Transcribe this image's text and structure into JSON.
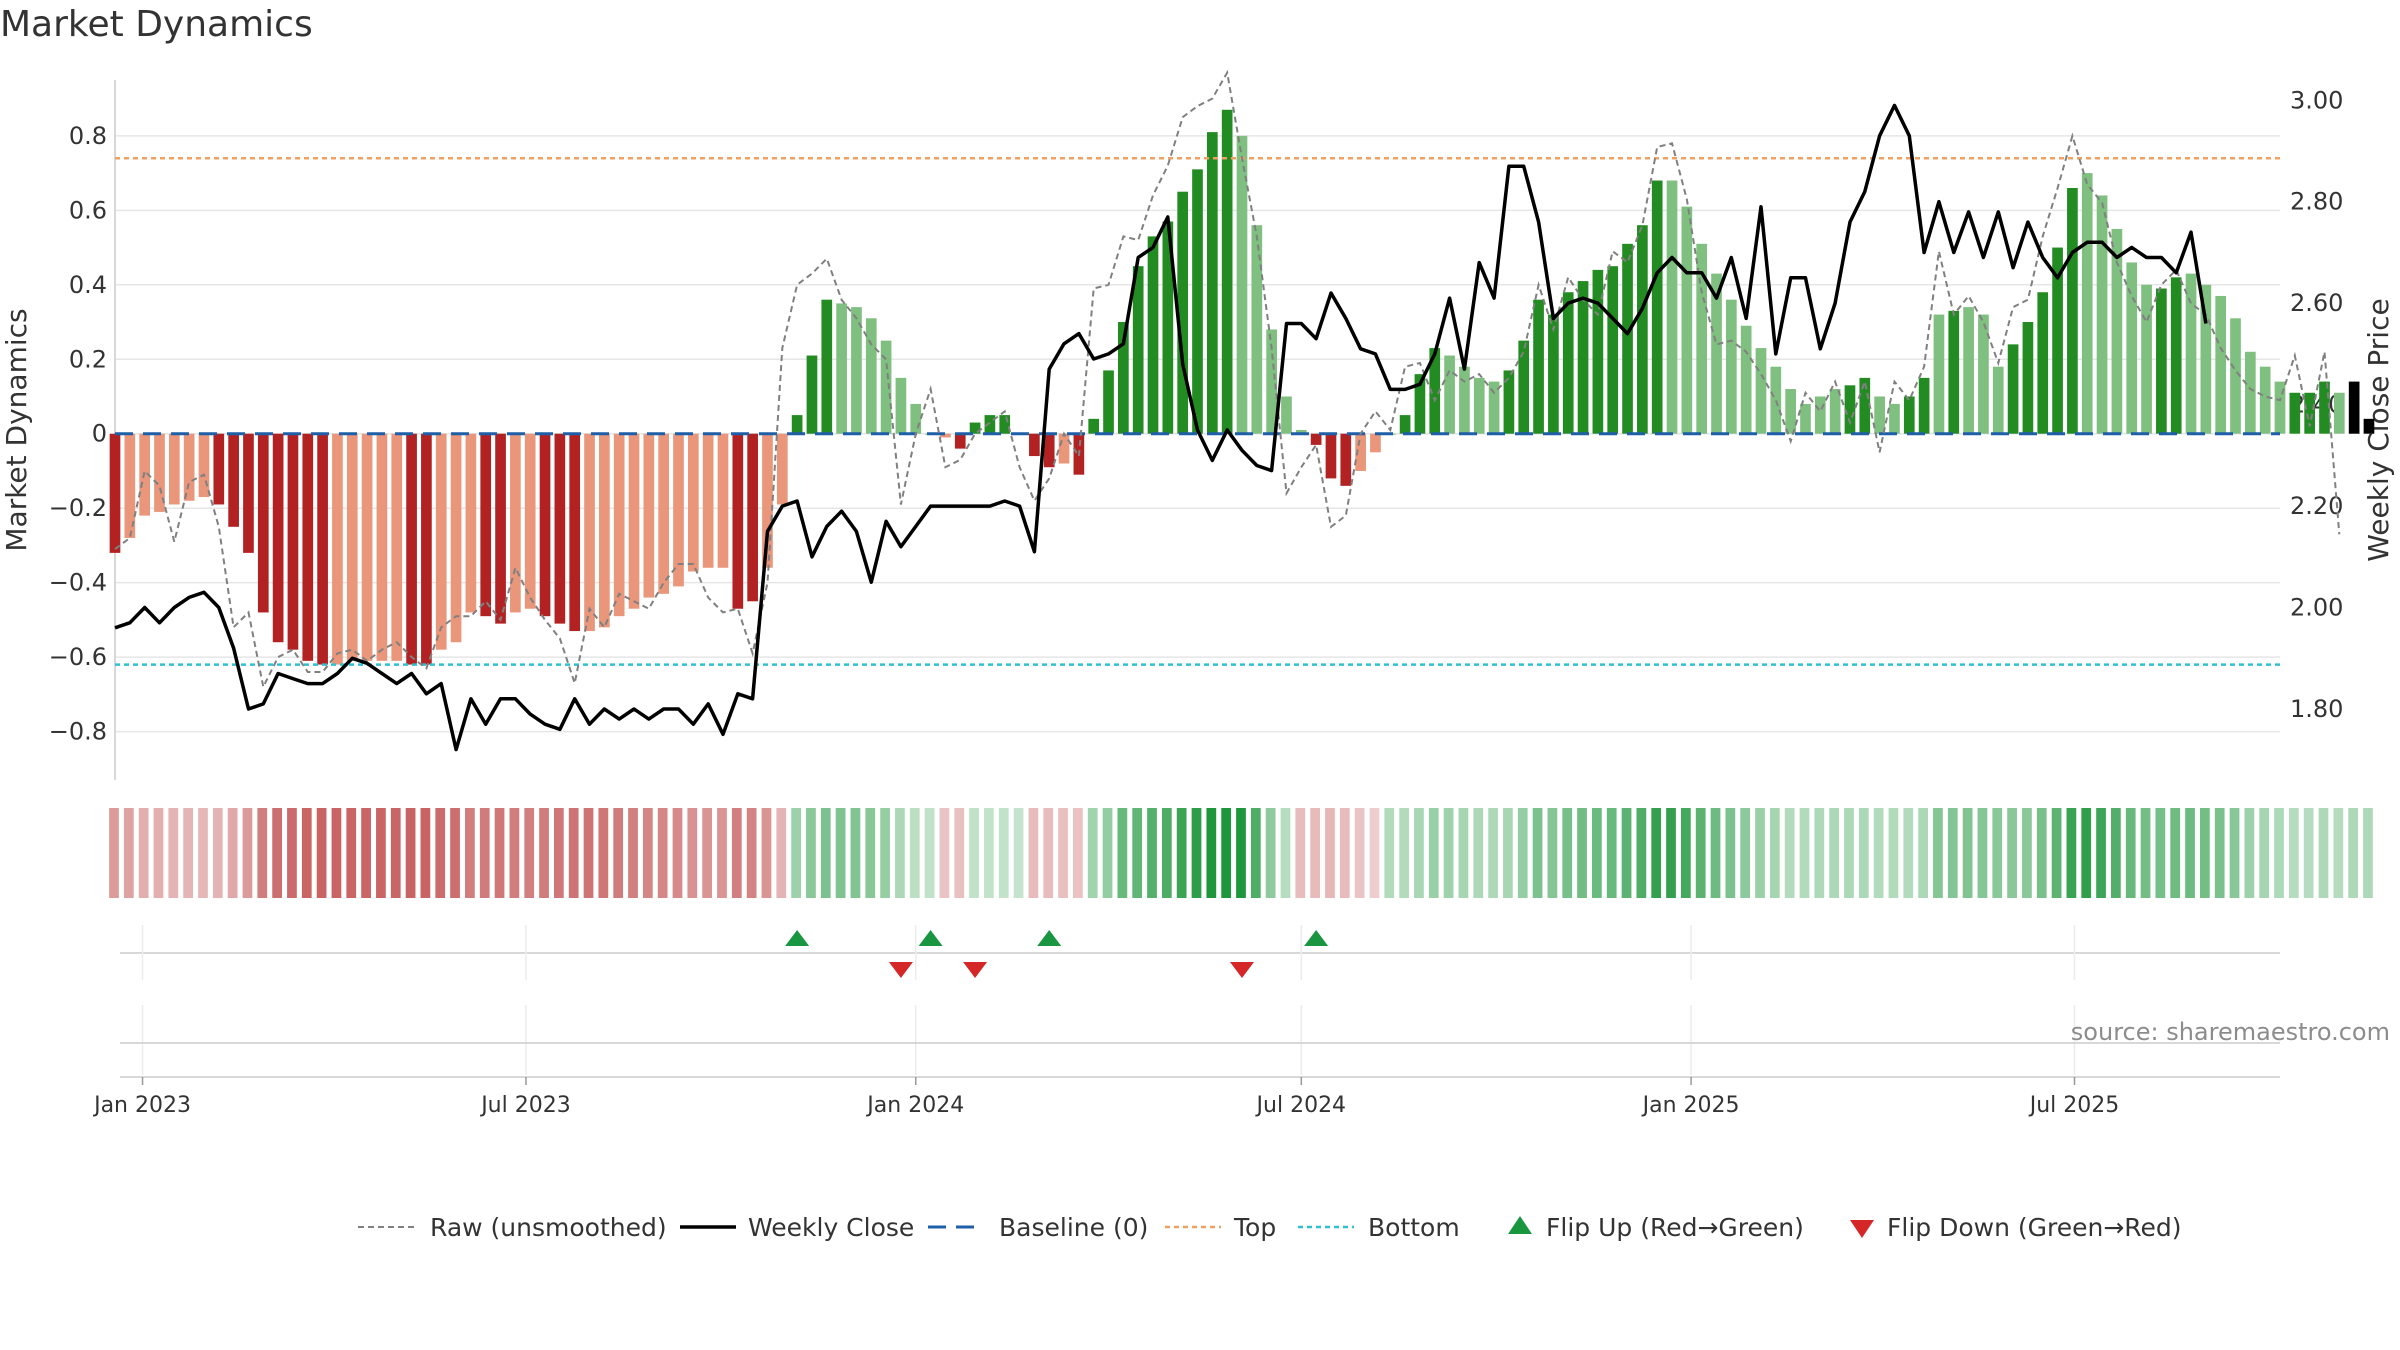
{
  "title": "Market Dynamics",
  "source": "source: sharemaestro.com",
  "chart_data": {
    "type": "bar",
    "left_axis": {
      "label": "Market Dynamics",
      "range": [
        -0.93,
        0.95
      ],
      "ticks": [
        -0.8,
        -0.6,
        -0.4,
        -0.2,
        0,
        0.2,
        0.4,
        0.6,
        0.8
      ],
      "tick_labels": [
        "−0.8",
        "−0.6",
        "−0.4",
        "−0.2",
        "0",
        "0.2",
        "0.4",
        "0.6",
        "0.8"
      ]
    },
    "right_axis": {
      "label": "Weekly Close Price",
      "range": [
        1.66,
        3.04
      ],
      "ticks": [
        1.8,
        2.0,
        2.2,
        2.4,
        2.6,
        2.8,
        3.0
      ],
      "tick_labels": [
        "1.80",
        "2.00",
        "2.20",
        "2.40",
        "2.60",
        "2.80",
        "3.00"
      ]
    },
    "x_axis": {
      "start": "2022-12-19",
      "end": "2025-10-06",
      "ticks": [
        "2023-01-01",
        "2023-07-01",
        "2024-01-01",
        "2024-07-01",
        "2025-01-01",
        "2025-07-01"
      ],
      "tick_labels": [
        "Jan 2023",
        "Jul 2023",
        "Jan 2024",
        "Jul 2024",
        "Jan 2025",
        "Jul 2025"
      ]
    },
    "start_date": "2022-12-19",
    "step_days": 7,
    "thresholds": {
      "top": 0.74,
      "bottom": -0.62,
      "baseline": 0
    },
    "series": [
      {
        "name": "Market Dynamics",
        "values": [
          -0.32,
          -0.28,
          -0.22,
          -0.21,
          -0.19,
          -0.18,
          -0.17,
          -0.19,
          -0.25,
          -0.32,
          -0.48,
          -0.56,
          -0.58,
          -0.61,
          -0.62,
          -0.62,
          -0.61,
          -0.61,
          -0.61,
          -0.61,
          -0.62,
          -0.62,
          -0.58,
          -0.56,
          -0.48,
          -0.49,
          -0.51,
          -0.48,
          -0.47,
          -0.49,
          -0.51,
          -0.53,
          -0.53,
          -0.52,
          -0.49,
          -0.47,
          -0.44,
          -0.43,
          -0.41,
          -0.37,
          -0.36,
          -0.36,
          -0.47,
          -0.45,
          -0.36,
          -0.19,
          0.05,
          0.21,
          0.36,
          0.35,
          0.34,
          0.31,
          0.25,
          0.15,
          0.08,
          0.0,
          -0.01,
          -0.04,
          0.03,
          0.05,
          0.05,
          0.0,
          -0.06,
          -0.09,
          -0.08,
          -0.11,
          0.04,
          0.17,
          0.3,
          0.45,
          0.53,
          0.57,
          0.65,
          0.71,
          0.81,
          0.87,
          0.8,
          0.56,
          0.28,
          0.1,
          0.01,
          -0.03,
          -0.12,
          -0.14,
          -0.1,
          -0.05,
          0.0,
          0.05,
          0.16,
          0.23,
          0.21,
          0.18,
          0.15,
          0.14,
          0.17,
          0.25,
          0.36,
          0.32,
          0.38,
          0.41,
          0.44,
          0.45,
          0.51,
          0.56,
          0.68,
          0.68,
          0.61,
          0.51,
          0.43,
          0.36,
          0.29,
          0.23,
          0.18,
          0.12,
          0.08,
          0.1,
          0.12,
          0.13,
          0.15,
          0.1,
          0.08,
          0.1,
          0.15,
          0.32,
          0.33,
          0.34,
          0.32,
          0.18,
          0.24,
          0.3,
          0.38,
          0.5,
          0.66,
          0.7,
          0.64,
          0.55,
          0.46,
          0.4,
          0.39,
          0.42,
          0.43,
          0.4,
          0.37,
          0.31,
          0.22,
          0.18,
          0.14,
          0.11,
          0.11,
          0.14,
          0.11,
          0.14,
          0.04
        ],
        "colors": [
          "#b22222",
          "#e9967a",
          "#e9967a",
          "#e9967a",
          "#e9967a",
          "#e9967a",
          "#e9967a",
          "#b22222",
          "#b22222",
          "#b22222",
          "#b22222",
          "#b22222",
          "#b22222",
          "#b22222",
          "#b22222",
          "#e9967a",
          "#e9967a",
          "#e9967a",
          "#e9967a",
          "#e9967a",
          "#b22222",
          "#b22222",
          "#e9967a",
          "#e9967a",
          "#e9967a",
          "#b22222",
          "#b22222",
          "#e9967a",
          "#e9967a",
          "#b22222",
          "#b22222",
          "#b22222",
          "#e9967a",
          "#e9967a",
          "#e9967a",
          "#e9967a",
          "#e9967a",
          "#e9967a",
          "#e9967a",
          "#e9967a",
          "#e9967a",
          "#e9967a",
          "#b22222",
          "#b22222",
          "#e9967a",
          "#e9967a",
          "#228b22",
          "#228b22",
          "#228b22",
          "#7fbf7f",
          "#7fbf7f",
          "#7fbf7f",
          "#7fbf7f",
          "#7fbf7f",
          "#7fbf7f",
          "#7fbf7f",
          "#e9967a",
          "#b22222",
          "#228b22",
          "#228b22",
          "#228b22",
          "#228b22",
          "#b22222",
          "#b22222",
          "#e9967a",
          "#b22222",
          "#228b22",
          "#228b22",
          "#228b22",
          "#228b22",
          "#228b22",
          "#228b22",
          "#228b22",
          "#228b22",
          "#228b22",
          "#228b22",
          "#7fbf7f",
          "#7fbf7f",
          "#7fbf7f",
          "#7fbf7f",
          "#7fbf7f",
          "#b22222",
          "#b22222",
          "#b22222",
          "#e9967a",
          "#e9967a",
          "#7fbf7f",
          "#228b22",
          "#228b22",
          "#228b22",
          "#7fbf7f",
          "#7fbf7f",
          "#7fbf7f",
          "#7fbf7f",
          "#228b22",
          "#228b22",
          "#228b22",
          "#228b22",
          "#228b22",
          "#228b22",
          "#228b22",
          "#228b22",
          "#228b22",
          "#228b22",
          "#228b22",
          "#7fbf7f",
          "#7fbf7f",
          "#7fbf7f",
          "#7fbf7f",
          "#7fbf7f",
          "#7fbf7f",
          "#7fbf7f",
          "#7fbf7f",
          "#7fbf7f",
          "#7fbf7f",
          "#7fbf7f",
          "#7fbf7f",
          "#228b22",
          "#228b22",
          "#7fbf7f",
          "#7fbf7f",
          "#228b22",
          "#228b22",
          "#7fbf7f",
          "#228b22",
          "#7fbf7f",
          "#7fbf7f",
          "#7fbf7f",
          "#228b22",
          "#228b22",
          "#228b22",
          "#228b22",
          "#228b22",
          "#7fbf7f",
          "#7fbf7f",
          "#7fbf7f",
          "#7fbf7f",
          "#7fbf7f",
          "#228b22",
          "#228b22",
          "#7fbf7f",
          "#7fbf7f",
          "#7fbf7f",
          "#7fbf7f",
          "#7fbf7f",
          "#7fbf7f",
          "#7fbf7f",
          "#228b22",
          "#228b22",
          "#228b22",
          "#7fbf7f"
        ]
      },
      {
        "name": "Raw (unsmoothed)",
        "values": [
          -0.31,
          -0.28,
          -0.1,
          -0.14,
          -0.29,
          -0.13,
          -0.11,
          -0.25,
          -0.52,
          -0.48,
          -0.68,
          -0.6,
          -0.58,
          -0.64,
          -0.64,
          -0.59,
          -0.58,
          -0.61,
          -0.58,
          -0.56,
          -0.6,
          -0.63,
          -0.52,
          -0.49,
          -0.49,
          -0.45,
          -0.5,
          -0.36,
          -0.44,
          -0.5,
          -0.55,
          -0.67,
          -0.47,
          -0.52,
          -0.43,
          -0.45,
          -0.47,
          -0.4,
          -0.35,
          -0.35,
          -0.44,
          -0.48,
          -0.47,
          -0.59,
          -0.4,
          0.23,
          0.4,
          0.43,
          0.47,
          0.36,
          0.31,
          0.24,
          0.2,
          -0.19,
          0.0,
          0.12,
          -0.09,
          -0.07,
          0.0,
          0.03,
          0.06,
          -0.09,
          -0.18,
          -0.12,
          0.0,
          -0.06,
          0.39,
          0.4,
          0.53,
          0.52,
          0.64,
          0.72,
          0.85,
          0.88,
          0.9,
          0.97,
          0.74,
          0.53,
          0.23,
          -0.16,
          -0.09,
          -0.03,
          -0.25,
          -0.22,
          0.0,
          0.06,
          0.01,
          0.18,
          0.19,
          0.09,
          0.17,
          0.14,
          0.16,
          0.11,
          0.15,
          0.22,
          0.4,
          0.28,
          0.42,
          0.36,
          0.32,
          0.49,
          0.46,
          0.56,
          0.77,
          0.78,
          0.63,
          0.38,
          0.24,
          0.25,
          0.22,
          0.16,
          0.09,
          -0.02,
          0.11,
          0.06,
          0.14,
          0.03,
          0.14,
          -0.05,
          0.14,
          0.09,
          0.18,
          0.49,
          0.32,
          0.37,
          0.3,
          0.19,
          0.34,
          0.36,
          0.53,
          0.66,
          0.8,
          0.67,
          0.62,
          0.46,
          0.37,
          0.3,
          0.4,
          0.44,
          0.35,
          0.32,
          0.23,
          0.17,
          0.12,
          0.1,
          0.09,
          0.21,
          0.02,
          0.22,
          -0.27
        ]
      },
      {
        "name": "Weekly Close",
        "values": [
          1.96,
          1.97,
          2.0,
          1.97,
          2.0,
          2.02,
          2.03,
          2.0,
          1.92,
          1.8,
          1.81,
          1.87,
          1.86,
          1.85,
          1.85,
          1.87,
          1.9,
          1.89,
          1.87,
          1.85,
          1.87,
          1.83,
          1.85,
          1.72,
          1.82,
          1.77,
          1.82,
          1.82,
          1.79,
          1.77,
          1.76,
          1.82,
          1.77,
          1.8,
          1.78,
          1.8,
          1.78,
          1.8,
          1.8,
          1.77,
          1.81,
          1.75,
          1.83,
          1.82,
          2.15,
          2.2,
          2.21,
          2.1,
          2.16,
          2.19,
          2.15,
          2.05,
          2.17,
          2.12,
          2.16,
          2.2,
          2.2,
          2.2,
          2.2,
          2.2,
          2.21,
          2.2,
          2.11,
          2.47,
          2.52,
          2.54,
          2.49,
          2.5,
          2.52,
          2.69,
          2.71,
          2.77,
          2.48,
          2.35,
          2.29,
          2.35,
          2.31,
          2.28,
          2.27,
          2.56,
          2.56,
          2.53,
          2.62,
          2.57,
          2.51,
          2.5,
          2.43,
          2.43,
          2.44,
          2.5,
          2.61,
          2.47,
          2.68,
          2.61,
          2.87,
          2.87,
          2.76,
          2.57,
          2.6,
          2.61,
          2.6,
          2.57,
          2.54,
          2.59,
          2.66,
          2.69,
          2.66,
          2.66,
          2.61,
          2.69,
          2.57,
          2.79,
          2.5,
          2.65,
          2.65,
          2.51,
          2.6,
          2.76,
          2.82,
          2.93,
          2.99,
          2.93,
          2.7,
          2.8,
          2.7,
          2.78,
          2.69,
          2.78,
          2.67,
          2.76,
          2.69,
          2.65,
          2.7,
          2.72,
          2.72,
          2.69,
          2.71,
          2.69,
          2.69,
          2.66,
          2.74,
          2.56
        ]
      }
    ],
    "heat_strip": {
      "values": [
        -0.32,
        -0.28,
        -0.22,
        -0.21,
        -0.19,
        -0.18,
        -0.17,
        -0.19,
        -0.25,
        -0.32,
        -0.48,
        -0.56,
        -0.58,
        -0.61,
        -0.62,
        -0.62,
        -0.61,
        -0.61,
        -0.61,
        -0.61,
        -0.62,
        -0.62,
        -0.58,
        -0.56,
        -0.48,
        -0.49,
        -0.51,
        -0.48,
        -0.47,
        -0.49,
        -0.51,
        -0.53,
        -0.53,
        -0.52,
        -0.49,
        -0.47,
        -0.44,
        -0.43,
        -0.41,
        -0.37,
        -0.36,
        -0.36,
        -0.47,
        -0.45,
        -0.36,
        -0.19,
        0.22,
        0.3,
        0.36,
        0.35,
        0.34,
        0.31,
        0.25,
        0.15,
        0.08,
        0.06,
        -0.1,
        -0.12,
        0.06,
        0.05,
        0.05,
        0.04,
        -0.14,
        -0.14,
        -0.12,
        -0.11,
        0.2,
        0.26,
        0.45,
        0.48,
        0.53,
        0.57,
        0.65,
        0.71,
        0.81,
        0.87,
        0.8,
        0.56,
        0.28,
        0.1,
        -0.14,
        -0.15,
        -0.17,
        -0.14,
        -0.1,
        -0.05,
        0.12,
        0.12,
        0.16,
        0.23,
        0.21,
        0.18,
        0.15,
        0.14,
        0.17,
        0.25,
        0.36,
        0.32,
        0.38,
        0.41,
        0.44,
        0.45,
        0.51,
        0.56,
        0.68,
        0.68,
        0.61,
        0.51,
        0.43,
        0.36,
        0.29,
        0.23,
        0.18,
        0.12,
        0.12,
        0.14,
        0.15,
        0.15,
        0.15,
        0.12,
        0.12,
        0.12,
        0.15,
        0.32,
        0.33,
        0.34,
        0.32,
        0.3,
        0.3,
        0.3,
        0.38,
        0.5,
        0.66,
        0.7,
        0.64,
        0.55,
        0.46,
        0.4,
        0.39,
        0.42,
        0.43,
        0.4,
        0.37,
        0.31,
        0.22,
        0.18,
        0.14,
        0.11,
        0.11,
        0.14,
        0.11,
        0.14,
        0.14
      ]
    },
    "flip_up_dates": [
      "2023-11-06",
      "2024-01-08",
      "2024-03-04",
      "2024-07-08"
    ],
    "flip_down_dates": [
      "2023-12-25",
      "2024-01-29",
      "2024-06-03"
    ],
    "legend": {
      "placement": "bottom-center",
      "items": [
        {
          "label": "Raw (unsmoothed)",
          "style": "dashed-gray"
        },
        {
          "label": "Weekly Close",
          "style": "solid-black"
        },
        {
          "label": "Baseline (0)",
          "style": "dashed-blue"
        },
        {
          "label": "Top",
          "style": "dotted-orange"
        },
        {
          "label": "Bottom",
          "style": "dotted-cyan"
        },
        {
          "label": "Flip Up (Red→Green)",
          "style": "triangle-up-green"
        },
        {
          "label": "Flip Down (Green→Red)",
          "style": "triangle-down-red"
        }
      ]
    },
    "grid": true
  },
  "colors": {
    "up_strong": "#228b22",
    "up_weak": "#7fbf7f",
    "down_strong": "#b22222",
    "down_weak": "#e9967a",
    "raw_line": "#808080",
    "close_line": "#000000",
    "baseline": "#1f5fa8",
    "top": "#f0a060",
    "bottom": "#30c0d0",
    "flip_up": "#1a9641",
    "flip_down": "#d62728",
    "grid": "#e6e6e6",
    "text": "#333333"
  }
}
